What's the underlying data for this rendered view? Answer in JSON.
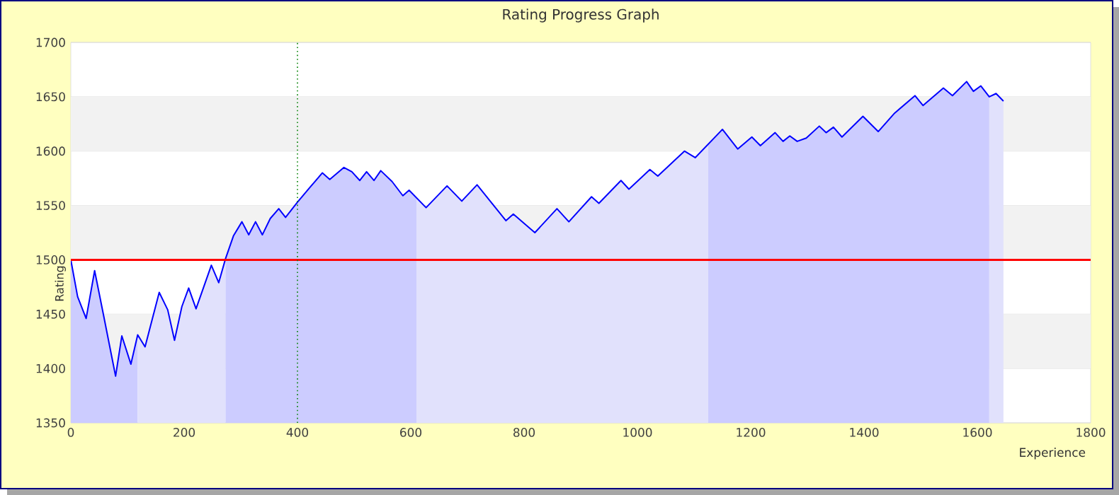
{
  "chart_data": {
    "type": "area",
    "title": "Rating Progress Graph",
    "xlabel": "Experience",
    "ylabel": "Rating",
    "xlim": [
      0,
      1800
    ],
    "ylim": [
      1350,
      1700
    ],
    "xticks": [
      0,
      200,
      400,
      600,
      800,
      1000,
      1200,
      1400,
      1600,
      1800
    ],
    "yticks": [
      1350,
      1400,
      1450,
      1500,
      1550,
      1600,
      1650,
      1700
    ],
    "grid": "y",
    "bands": [
      {
        "axis": "y",
        "from": 1400,
        "to": 1450,
        "color": "#f2f2f2"
      },
      {
        "axis": "y",
        "from": 1500,
        "to": 1550,
        "color": "#f2f2f2"
      },
      {
        "axis": "y",
        "from": 1600,
        "to": 1650,
        "color": "#f2f2f2"
      }
    ],
    "ref_lines": [
      {
        "axis": "y",
        "value": 1500,
        "color": "#ff0000",
        "line_style": "solid"
      },
      {
        "axis": "x",
        "value": 400,
        "color": "#008000",
        "line_style": "dotted"
      }
    ],
    "series": [
      {
        "color": "#ccccff",
        "x": [
          0,
          12,
          27,
          42,
          57,
          79,
          90,
          106,
          118
        ],
        "values": [
          1500,
          1466,
          1446,
          1490,
          1451,
          1393,
          1430,
          1404,
          1431
        ]
      },
      {
        "color": "#e1e1fc",
        "x": [
          118,
          131,
          156,
          171,
          183,
          196,
          208,
          221,
          248,
          261,
          273
        ],
        "values": [
          1431,
          1420,
          1470,
          1454,
          1426,
          1457,
          1474,
          1455,
          1495,
          1479,
          1501
        ]
      },
      {
        "color": "#ccccff",
        "x": [
          273,
          287,
          302,
          314,
          326,
          338,
          352,
          367,
          379,
          400,
          421,
          444,
          457,
          482,
          496,
          510,
          522,
          535,
          547,
          567,
          586,
          597,
          610
        ],
        "values": [
          1501,
          1522,
          1535,
          1523,
          1535,
          1523,
          1538,
          1547,
          1539,
          1553,
          1566,
          1580,
          1574,
          1585,
          1581,
          1573,
          1581,
          1573,
          1582,
          1572,
          1559,
          1564,
          1557
        ]
      },
      {
        "color": "#e1e1fc",
        "x": [
          610,
          627,
          664,
          690,
          717,
          768,
          781,
          819,
          858,
          879,
          919,
          932,
          971,
          985,
          1022,
          1036,
          1083,
          1102,
          1125
        ],
        "values": [
          1557,
          1548,
          1568,
          1554,
          1569,
          1536,
          1542,
          1525,
          1547,
          1535,
          1558,
          1552,
          1573,
          1565,
          1583,
          1577,
          1600,
          1594,
          1606
        ]
      },
      {
        "color": "#ccccff",
        "x": [
          1125,
          1150,
          1177,
          1202,
          1217,
          1243,
          1257,
          1269,
          1282,
          1298,
          1321,
          1333,
          1346,
          1361,
          1398,
          1425,
          1454,
          1490,
          1504,
          1540,
          1556,
          1581,
          1593,
          1606,
          1621
        ],
        "values": [
          1606,
          1620,
          1602,
          1613,
          1605,
          1617,
          1609,
          1614,
          1609,
          1612,
          1623,
          1617,
          1622,
          1613,
          1632,
          1618,
          1635,
          1651,
          1642,
          1658,
          1651,
          1664,
          1655,
          1660,
          1650
        ]
      },
      {
        "color": "#e1e1fc",
        "x": [
          1621,
          1633,
          1646
        ],
        "values": [
          1650,
          1653,
          1646
        ]
      },
      {
        "type": "line",
        "color": "#0000ff",
        "x": [
          0,
          12,
          27,
          42,
          57,
          79,
          90,
          106,
          118,
          131,
          156,
          171,
          183,
          196,
          208,
          221,
          248,
          261,
          273,
          287,
          302,
          314,
          326,
          338,
          352,
          367,
          379,
          400,
          421,
          444,
          457,
          482,
          496,
          510,
          522,
          535,
          547,
          567,
          586,
          597,
          627,
          664,
          690,
          717,
          768,
          781,
          819,
          858,
          879,
          919,
          932,
          971,
          985,
          1022,
          1036,
          1083,
          1102,
          1150,
          1177,
          1202,
          1217,
          1243,
          1257,
          1269,
          1282,
          1298,
          1321,
          1333,
          1346,
          1361,
          1398,
          1425,
          1454,
          1490,
          1504,
          1540,
          1556,
          1581,
          1593,
          1606,
          1621,
          1633,
          1646
        ],
        "values": [
          1500,
          1466,
          1446,
          1490,
          1451,
          1393,
          1430,
          1404,
          1431,
          1420,
          1470,
          1454,
          1426,
          1457,
          1474,
          1455,
          1495,
          1479,
          1501,
          1522,
          1535,
          1523,
          1535,
          1523,
          1538,
          1547,
          1539,
          1553,
          1566,
          1580,
          1574,
          1585,
          1581,
          1573,
          1581,
          1573,
          1582,
          1572,
          1559,
          1564,
          1548,
          1568,
          1554,
          1569,
          1536,
          1542,
          1525,
          1547,
          1535,
          1558,
          1552,
          1573,
          1565,
          1583,
          1577,
          1600,
          1594,
          1620,
          1602,
          1613,
          1605,
          1617,
          1609,
          1614,
          1609,
          1612,
          1623,
          1617,
          1622,
          1613,
          1632,
          1618,
          1635,
          1651,
          1642,
          1658,
          1651,
          1664,
          1655,
          1660,
          1650,
          1653,
          1646
        ]
      }
    ]
  }
}
